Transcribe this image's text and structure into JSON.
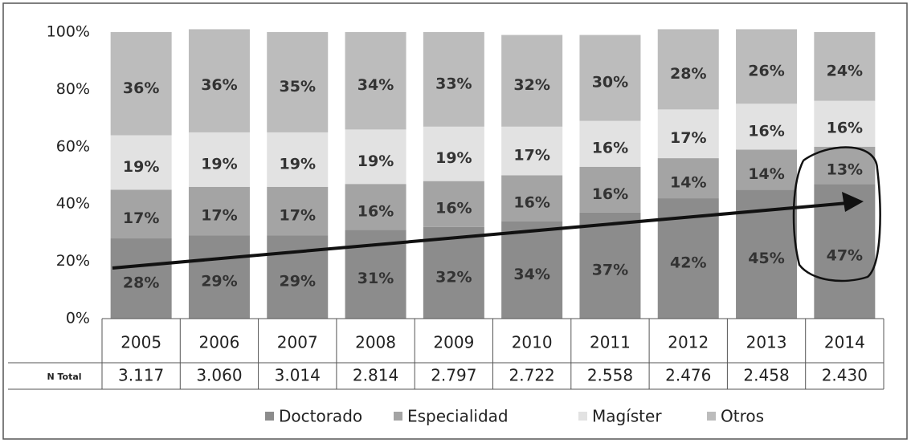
{
  "chart_data": {
    "type": "stacked_bar_100",
    "categories": [
      "2005",
      "2006",
      "2007",
      "2008",
      "2009",
      "2010",
      "2011",
      "2012",
      "2013",
      "2014"
    ],
    "series": [
      {
        "name": "Doctorado",
        "color": "#8c8c8c",
        "values": [
          28,
          29,
          29,
          31,
          32,
          34,
          37,
          42,
          45,
          47
        ],
        "value_labels": [
          "28%",
          "29%",
          "29%",
          "31%",
          "32%",
          "34%",
          "37%",
          "42%",
          "45%",
          "47%"
        ]
      },
      {
        "name": "Especialidad",
        "color": "#a4a4a4",
        "values": [
          17,
          17,
          17,
          16,
          16,
          16,
          16,
          14,
          14,
          13
        ],
        "value_labels": [
          "17%",
          "17%",
          "17%",
          "16%",
          "16%",
          "16%",
          "16%",
          "14%",
          "14%",
          "13%"
        ]
      },
      {
        "name": "Magíster",
        "color": "#e2e2e2",
        "values": [
          19,
          19,
          19,
          19,
          19,
          17,
          16,
          17,
          16,
          16
        ],
        "value_labels": [
          "19%",
          "19%",
          "19%",
          "19%",
          "19%",
          "17%",
          "16%",
          "17%",
          "16%",
          "16%"
        ]
      },
      {
        "name": "Otros",
        "color": "#bcbcbc",
        "values": [
          36,
          36,
          35,
          34,
          33,
          32,
          30,
          28,
          26,
          24
        ],
        "value_labels": [
          "36%",
          "36%",
          "35%",
          "34%",
          "33%",
          "32%",
          "30%",
          "28%",
          "26%",
          "24%"
        ]
      }
    ],
    "ylim": [
      0,
      100
    ],
    "yticks": [
      {
        "value": 0,
        "label": "0%"
      },
      {
        "value": 20,
        "label": "20%"
      },
      {
        "value": 40,
        "label": "40%"
      },
      {
        "value": 60,
        "label": "60%"
      },
      {
        "value": 80,
        "label": "80%"
      },
      {
        "value": 100,
        "label": "100%"
      }
    ],
    "table_row_label": "N Total",
    "table_row": [
      "3.117",
      "3.060",
      "3.014",
      "2.814",
      "2.797",
      "2.722",
      "2.558",
      "2.476",
      "2.458",
      "2.430"
    ],
    "legend": "bottom"
  }
}
